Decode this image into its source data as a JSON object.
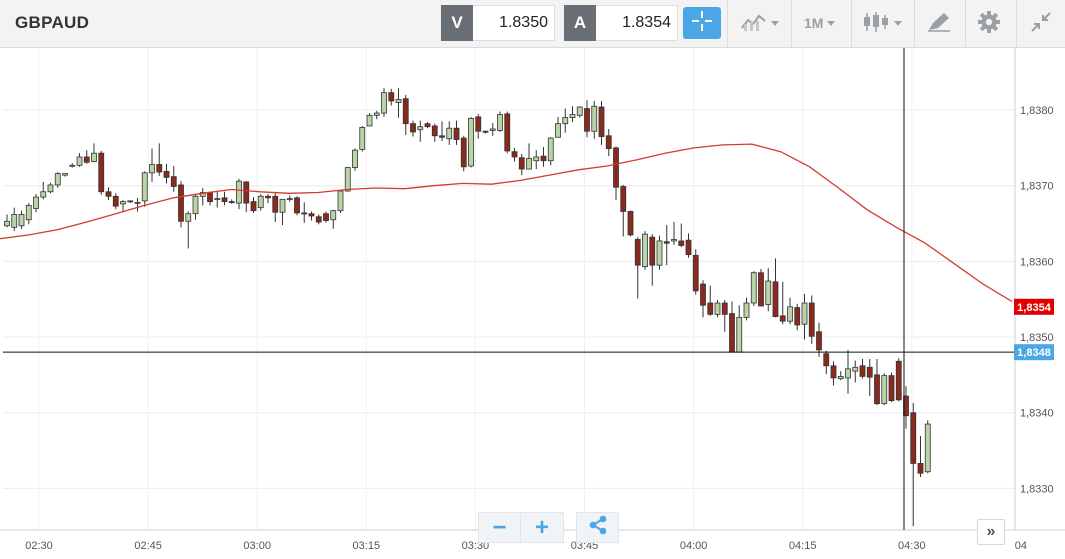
{
  "header": {
    "symbol": "GBPAUD",
    "sell_tag": "V",
    "sell_price": "1.8350",
    "buy_tag": "A",
    "buy_price": "1.8354",
    "timeframe_label": "1M"
  },
  "colors": {
    "bull_candle": "#b9d4a6",
    "bear_candle": "#8a2a1e",
    "moving_average": "#d33b30",
    "current_price_badge": "#e00000",
    "crosshair_badge": "#4aa6e4",
    "accent": "#4aa6e4"
  },
  "icons": [
    "crosshair-icon",
    "line-chart-icon",
    "candlestick-icon",
    "drawing-tool-icon",
    "gear-icon",
    "collapse-icon",
    "minus-icon",
    "plus-icon",
    "share-icon",
    "double-chevron-right-icon"
  ],
  "chart_data": {
    "type": "candlestick",
    "x_ticks": [
      "02:30",
      "02:45",
      "03:00",
      "03:15",
      "03:30",
      "03:45",
      "04:00",
      "04:15",
      "04:30",
      "04"
    ],
    "y_ticks": [
      "1,8380",
      "1,8370",
      "1,8360",
      "1,8350",
      "1,8340",
      "1,8330"
    ],
    "y_tick_values": [
      1.838,
      1.837,
      1.836,
      1.835,
      1.834,
      1.833
    ],
    "ylim": [
      1.83245,
      1.83882
    ],
    "current_price": 1.8354,
    "current_price_label": "1,8354",
    "crosshair_price": 1.8348,
    "crosshair_price_label": "1,8348",
    "candles": [
      [
        1.83647,
        1.83653,
        1.83645,
        1.83662
      ],
      [
        1.83645,
        1.83662,
        1.8364,
        1.83671
      ],
      [
        1.83647,
        1.83662,
        1.83643,
        1.83667
      ],
      [
        1.83655,
        1.83674,
        1.83649,
        1.83677
      ],
      [
        1.8367,
        1.83685,
        1.83665,
        1.83689
      ],
      [
        1.83685,
        1.83692,
        1.83682,
        1.83705
      ],
      [
        1.83692,
        1.83701,
        1.8369,
        1.83704
      ],
      [
        1.83701,
        1.83716,
        1.83697,
        1.83718
      ],
      [
        1.83714,
        1.83716,
        1.83712,
        1.83716
      ],
      [
        1.83726,
        1.83727,
        1.83724,
        1.8373
      ],
      [
        1.83727,
        1.83738,
        1.83725,
        1.83743
      ],
      [
        1.83738,
        1.83731,
        1.83729,
        1.83747
      ],
      [
        1.83732,
        1.83743,
        1.83731,
        1.83756
      ],
      [
        1.83743,
        1.83692,
        1.83688,
        1.83746
      ],
      [
        1.83692,
        1.83686,
        1.83681,
        1.83698
      ],
      [
        1.83686,
        1.83673,
        1.83669,
        1.8369
      ],
      [
        1.83676,
        1.83679,
        1.83665,
        1.83681
      ],
      [
        1.8368,
        1.83679,
        1.83677,
        1.8368
      ],
      [
        1.83678,
        1.83678,
        1.83666,
        1.83684
      ],
      [
        1.8368,
        1.83717,
        1.83672,
        1.83719
      ],
      [
        1.83717,
        1.83728,
        1.83705,
        1.83749
      ],
      [
        1.83728,
        1.83718,
        1.83713,
        1.83756
      ],
      [
        1.83719,
        1.83711,
        1.83703,
        1.83729
      ],
      [
        1.83712,
        1.83699,
        1.83692,
        1.83726
      ],
      [
        1.83701,
        1.83653,
        1.83645,
        1.83706
      ],
      [
        1.83653,
        1.83663,
        1.83617,
        1.83666
      ],
      [
        1.83663,
        1.83686,
        1.83655,
        1.83689
      ],
      [
        1.83686,
        1.83691,
        1.83674,
        1.83697
      ],
      [
        1.83691,
        1.83679,
        1.83674,
        1.83692
      ],
      [
        1.83682,
        1.83683,
        1.83671,
        1.83692
      ],
      [
        1.83684,
        1.83679,
        1.83674,
        1.83692
      ],
      [
        1.83679,
        1.83678,
        1.83676,
        1.83682
      ],
      [
        1.83677,
        1.83706,
        1.83669,
        1.83709
      ],
      [
        1.83705,
        1.83677,
        1.83665,
        1.83706
      ],
      [
        1.83679,
        1.83667,
        1.83664,
        1.83685
      ],
      [
        1.83671,
        1.83686,
        1.83667,
        1.83689
      ],
      [
        1.83686,
        1.83684,
        1.83677,
        1.83689
      ],
      [
        1.83686,
        1.83665,
        1.83652,
        1.8369
      ],
      [
        1.83665,
        1.83682,
        1.83648,
        1.83682
      ],
      [
        1.83682,
        1.83683,
        1.83679,
        1.83687
      ],
      [
        1.83684,
        1.83664,
        1.83661,
        1.83686
      ],
      [
        1.83664,
        1.83663,
        1.83651,
        1.83678
      ],
      [
        1.83663,
        1.8366,
        1.83654,
        1.83666
      ],
      [
        1.83659,
        1.83652,
        1.83649,
        1.83662
      ],
      [
        1.83663,
        1.83654,
        1.83651,
        1.83666
      ],
      [
        1.83655,
        1.83667,
        1.83643,
        1.83668
      ],
      [
        1.83667,
        1.83693,
        1.83664,
        1.83693
      ],
      [
        1.83693,
        1.83724,
        1.83692,
        1.83725
      ],
      [
        1.83724,
        1.83747,
        1.8372,
        1.83749
      ],
      [
        1.83748,
        1.83777,
        1.83745,
        1.83779
      ],
      [
        1.83779,
        1.83793,
        1.83779,
        1.83796
      ],
      [
        1.83793,
        1.83796,
        1.83788,
        1.83799
      ],
      [
        1.83796,
        1.83823,
        1.83791,
        1.83829
      ],
      [
        1.83823,
        1.83812,
        1.83806,
        1.83828
      ],
      [
        1.8381,
        1.83814,
        1.8379,
        1.83829
      ],
      [
        1.83815,
        1.83782,
        1.83767,
        1.8382
      ],
      [
        1.83782,
        1.83771,
        1.83765,
        1.83786
      ],
      [
        1.83774,
        1.83778,
        1.83758,
        1.83786
      ],
      [
        1.83782,
        1.83778,
        1.83776,
        1.83784
      ],
      [
        1.83779,
        1.83766,
        1.83758,
        1.83782
      ],
      [
        1.83766,
        1.83764,
        1.83759,
        1.83785
      ],
      [
        1.83762,
        1.83776,
        1.83754,
        1.83785
      ],
      [
        1.83776,
        1.83761,
        1.83754,
        1.83786
      ],
      [
        1.83763,
        1.83725,
        1.83719,
        1.83766
      ],
      [
        1.83726,
        1.83789,
        1.83724,
        1.83791
      ],
      [
        1.83791,
        1.83772,
        1.83762,
        1.83795
      ],
      [
        1.83772,
        1.83771,
        1.83769,
        1.83773
      ],
      [
        1.83773,
        1.83775,
        1.83766,
        1.83783
      ],
      [
        1.83773,
        1.83794,
        1.83771,
        1.83798
      ],
      [
        1.83795,
        1.83746,
        1.83743,
        1.83798
      ],
      [
        1.83745,
        1.83738,
        1.83732,
        1.8375
      ],
      [
        1.83737,
        1.83722,
        1.83714,
        1.83742
      ],
      [
        1.83722,
        1.83736,
        1.83722,
        1.83756
      ],
      [
        1.83733,
        1.83738,
        1.83722,
        1.83747
      ],
      [
        1.83739,
        1.83733,
        1.83725,
        1.83751
      ],
      [
        1.83733,
        1.83763,
        1.83727,
        1.83764
      ],
      [
        1.83764,
        1.83782,
        1.83764,
        1.83791
      ],
      [
        1.83782,
        1.8379,
        1.8377,
        1.83802
      ],
      [
        1.8379,
        1.83794,
        1.83784,
        1.83805
      ],
      [
        1.83793,
        1.83804,
        1.8379,
        1.83805
      ],
      [
        1.83802,
        1.83772,
        1.83764,
        1.83813
      ],
      [
        1.83772,
        1.83805,
        1.83762,
        1.83812
      ],
      [
        1.83804,
        1.83765,
        1.83754,
        1.83812
      ],
      [
        1.83766,
        1.83749,
        1.83739,
        1.83775
      ],
      [
        1.8375,
        1.83698,
        1.83681,
        1.83752
      ],
      [
        1.83699,
        1.83666,
        1.83633,
        1.83701
      ],
      [
        1.83666,
        1.83635,
        1.83633,
        1.83667
      ],
      [
        1.83629,
        1.83595,
        1.83551,
        1.83632
      ],
      [
        1.83593,
        1.83636,
        1.83589,
        1.8364
      ],
      [
        1.83632,
        1.83595,
        1.83568,
        1.83636
      ],
      [
        1.83595,
        1.83627,
        1.83589,
        1.83634
      ],
      [
        1.83626,
        1.83624,
        1.83595,
        1.83648
      ],
      [
        1.83627,
        1.83629,
        1.83622,
        1.83652
      ],
      [
        1.83627,
        1.83621,
        1.83619,
        1.8365
      ],
      [
        1.83628,
        1.83609,
        1.83605,
        1.83637
      ],
      [
        1.83608,
        1.83561,
        1.83556,
        1.83616
      ],
      [
        1.8357,
        1.83542,
        1.83526,
        1.83575
      ],
      [
        1.83545,
        1.8353,
        1.83528,
        1.83568
      ],
      [
        1.8353,
        1.83545,
        1.83526,
        1.83549
      ],
      [
        1.83545,
        1.8353,
        1.83507,
        1.83549
      ],
      [
        1.83531,
        1.8348,
        1.8348,
        1.83547
      ],
      [
        1.8348,
        1.83526,
        1.8348,
        1.83542
      ],
      [
        1.83526,
        1.83545,
        1.83522,
        1.83552
      ],
      [
        1.83545,
        1.83585,
        1.83541,
        1.83587
      ],
      [
        1.83585,
        1.83541,
        1.83541,
        1.8359
      ],
      [
        1.83543,
        1.83574,
        1.83534,
        1.83591
      ],
      [
        1.83573,
        1.83527,
        1.83526,
        1.83604
      ],
      [
        1.83528,
        1.83521,
        1.83517,
        1.83573
      ],
      [
        1.83521,
        1.8354,
        1.83517,
        1.83552
      ],
      [
        1.83539,
        1.83516,
        1.83509,
        1.83544
      ],
      [
        1.83517,
        1.83545,
        1.83497,
        1.83557
      ],
      [
        1.83545,
        1.83501,
        1.83491,
        1.83555
      ],
      [
        1.83507,
        1.83483,
        1.83474,
        1.83519
      ],
      [
        1.83478,
        1.83462,
        1.83451,
        1.83482
      ],
      [
        1.83462,
        1.83446,
        1.83436,
        1.83468
      ],
      [
        1.83445,
        1.83448,
        1.83443,
        1.83455
      ],
      [
        1.83446,
        1.83458,
        1.83425,
        1.83483
      ],
      [
        1.83455,
        1.8346,
        1.8344,
        1.83469
      ],
      [
        1.83462,
        1.83448,
        1.83445,
        1.83471
      ],
      [
        1.8346,
        1.83447,
        1.83422,
        1.83471
      ],
      [
        1.8345,
        1.83412,
        1.8341,
        1.83471
      ],
      [
        1.83412,
        1.83449,
        1.8341,
        1.83452
      ],
      [
        1.83449,
        1.83416,
        1.83414,
        1.83453
      ],
      [
        1.83468,
        1.83417,
        1.83415,
        1.83472
      ],
      [
        1.83422,
        1.83396,
        1.83379,
        1.83435
      ],
      [
        1.834,
        1.83333,
        1.8325,
        1.83413
      ],
      [
        1.83333,
        1.8332,
        1.83315,
        1.83369
      ],
      [
        1.83322,
        1.83385,
        1.8332,
        1.8339
      ]
    ],
    "moving_average": [
      1.8363,
      1.83635,
      1.83642,
      1.83652,
      1.83663,
      1.83674,
      1.83684,
      1.8369,
      1.83695,
      1.83692,
      1.8369,
      1.83691,
      1.83695,
      1.83697,
      1.83696,
      1.837,
      1.83703,
      1.83702,
      1.83707,
      1.83714,
      1.83721,
      1.83726,
      1.83734,
      1.83743,
      1.8375,
      1.83754,
      1.83755,
      1.83745,
      1.83725,
      1.83697,
      1.83668,
      1.83645,
      1.83624,
      1.83597,
      1.8357,
      1.83547
    ]
  },
  "controls": {
    "zoom_out_label": "−",
    "zoom_in_label": "+",
    "scroll_end_label": "»"
  }
}
